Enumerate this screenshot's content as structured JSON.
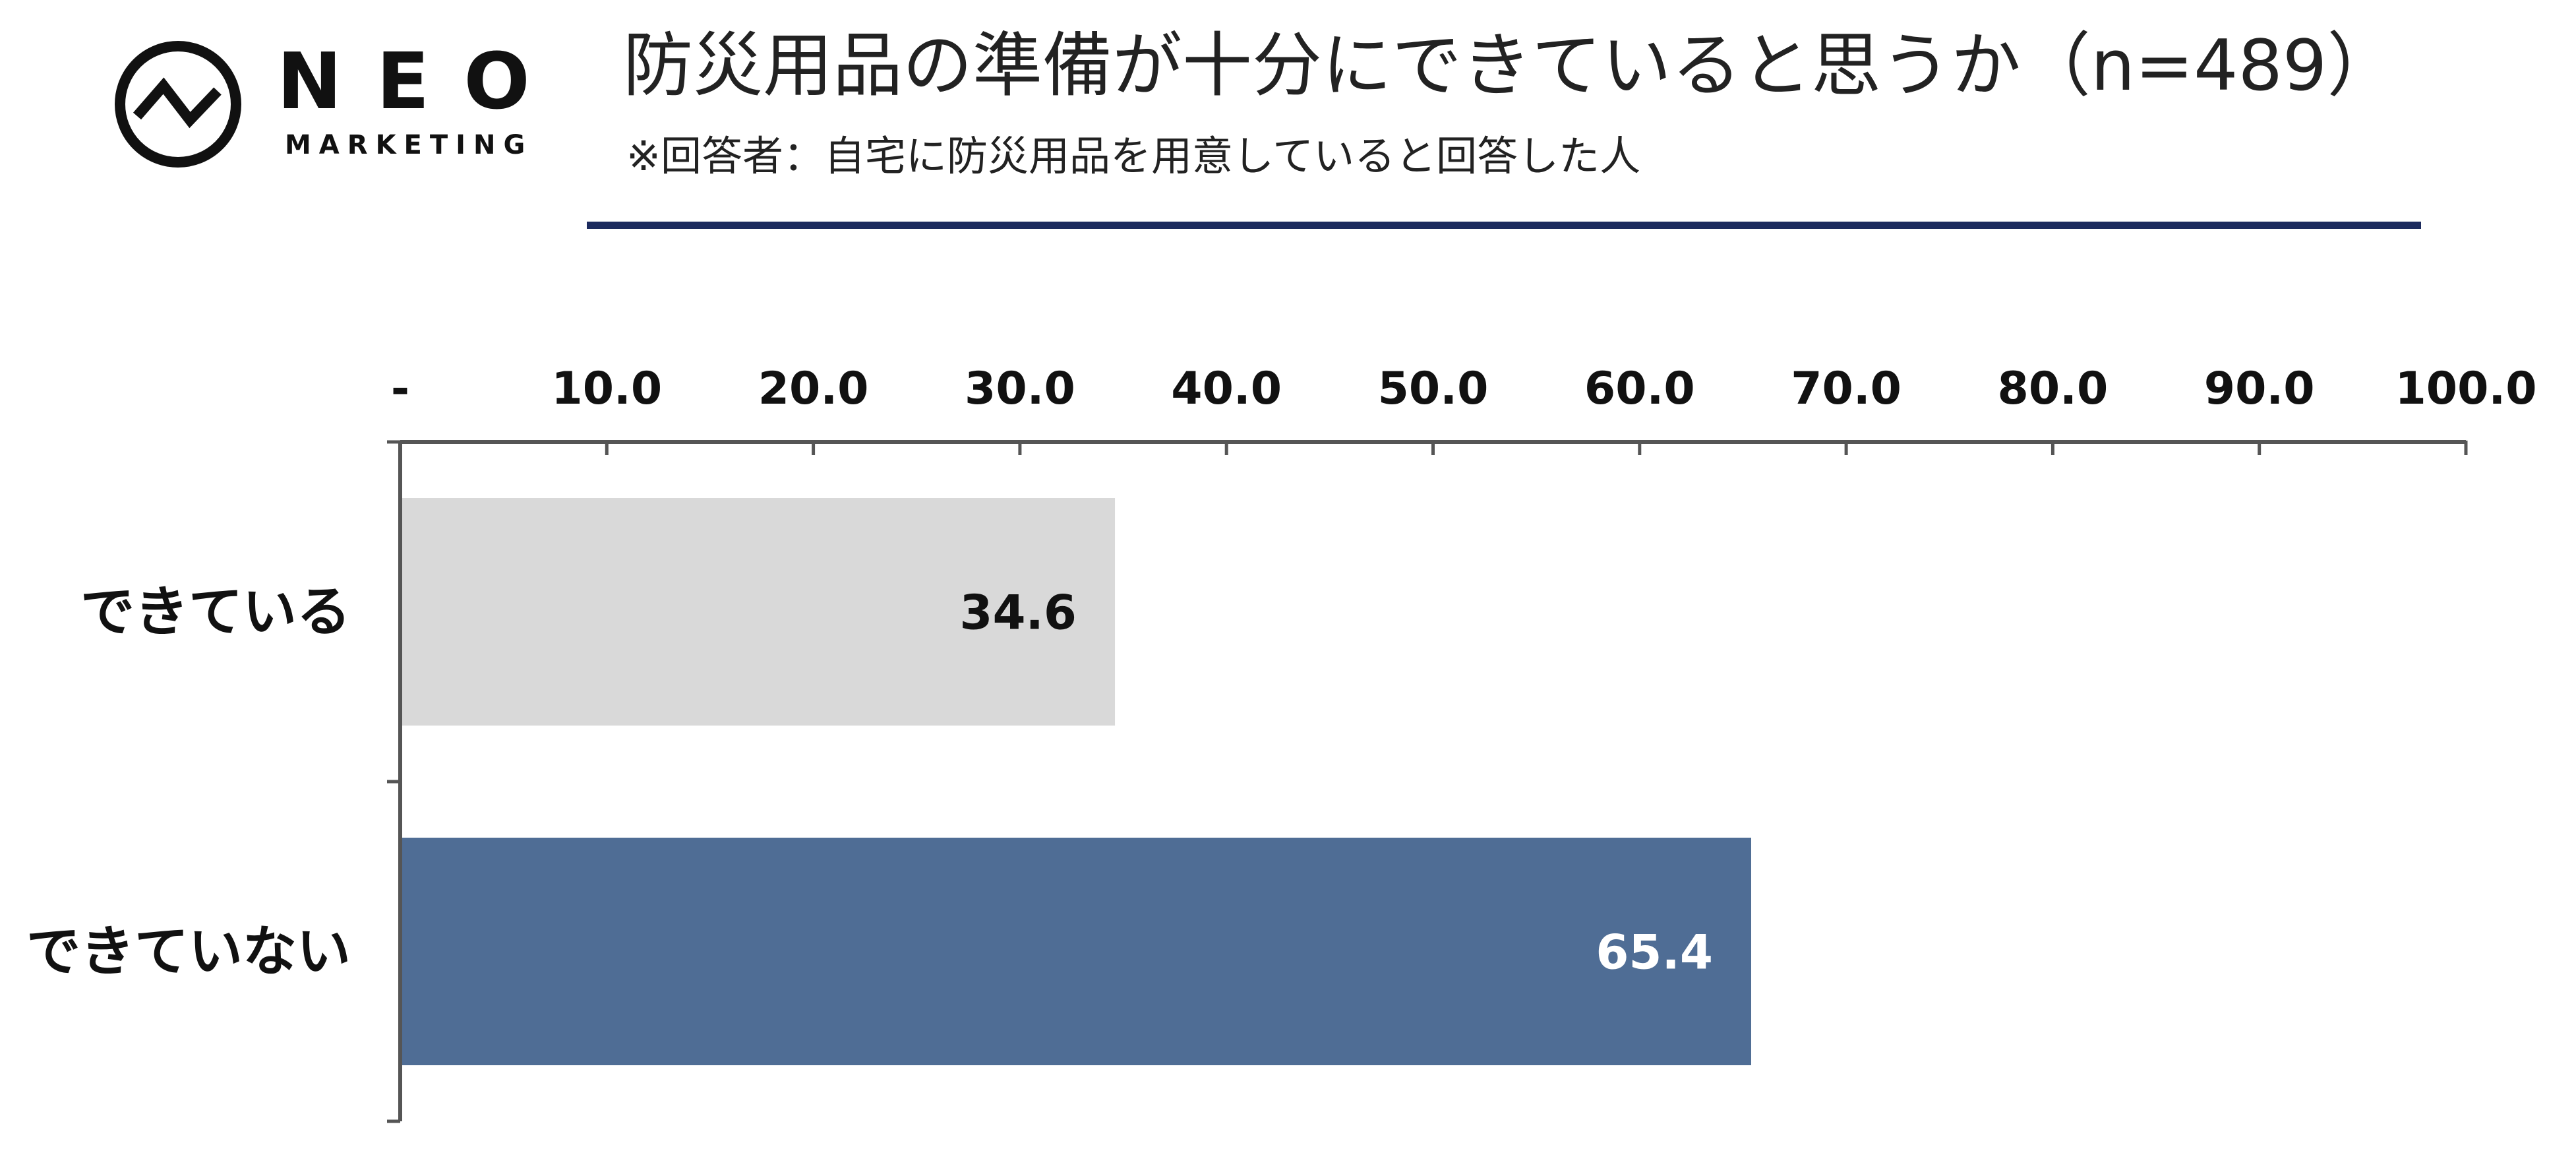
{
  "brand": {
    "name": "NEO",
    "tagline": "MARKETING"
  },
  "chart_data": {
    "type": "bar",
    "orientation": "horizontal",
    "title": "防災用品の準備が十分にできていると思うか（n=489）",
    "subtitle": "※回答者：自宅に防災用品を用意していると回答した人",
    "categories": [
      "できている",
      "できていない"
    ],
    "values": [
      34.6,
      65.4
    ],
    "value_labels": [
      "34.6",
      "65.4"
    ],
    "bar_colors": [
      "#d9d9d9",
      "#4f6d95"
    ],
    "value_label_colors": [
      "#111111",
      "#ffffff"
    ],
    "xlim": [
      0,
      100
    ],
    "x_ticks": [
      0,
      10,
      20,
      30,
      40,
      50,
      60,
      70,
      80,
      90,
      100
    ],
    "x_tick_labels": [
      "-",
      "10.0",
      "20.0",
      "30.0",
      "40.0",
      "50.0",
      "60.0",
      "70.0",
      "80.0",
      "90.0",
      "100.0"
    ],
    "x_axis_position": "top",
    "grid": false,
    "legend": "none"
  },
  "colors": {
    "title_rule": "#1c2b5e",
    "axis": "#555555"
  }
}
